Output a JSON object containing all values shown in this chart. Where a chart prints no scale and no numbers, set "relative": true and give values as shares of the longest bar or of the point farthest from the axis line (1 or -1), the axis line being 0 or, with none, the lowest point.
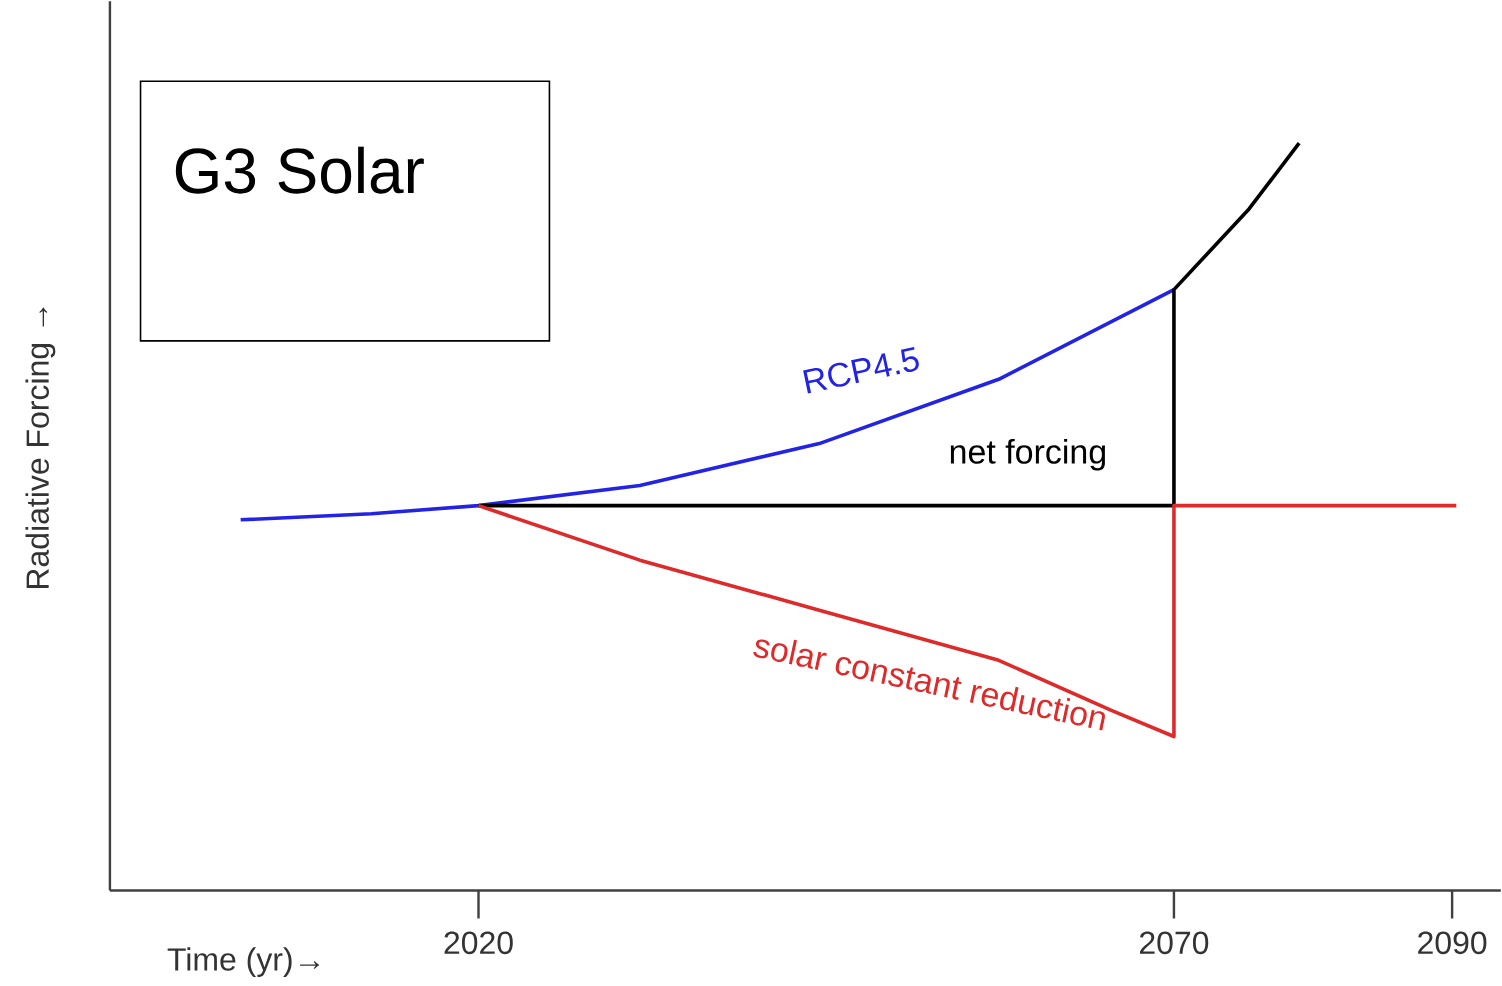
{
  "chart_data": {
    "type": "line",
    "relative": true,
    "title": "G3 Solar",
    "xlabel": "Time (yr)→",
    "ylabel": "Radiative Forcing →",
    "xlim": [
      1993.5,
      2093.5
    ],
    "xticks": [
      2020,
      2070,
      2090
    ],
    "series": [
      {
        "name": "RCP4.5",
        "color": "#2323e6",
        "x": [
          2002.9,
          2012.3,
          2020,
          2031.6,
          2044.5,
          2057.4,
          2070
        ],
        "values": [
          0.496,
          0.504,
          0.515,
          0.542,
          0.598,
          0.684,
          0.804
        ]
      },
      {
        "name": "net forcing",
        "color": "#000000",
        "x": [
          2020,
          2070,
          2070,
          2075.4,
          2079
        ],
        "values": [
          0.515,
          0.515,
          0.804,
          0.912,
          1.0
        ]
      },
      {
        "name": "solar constant reduction",
        "color": "#dd2a2a",
        "x": [
          2020,
          2031.6,
          2044.5,
          2057.4,
          2065.5,
          2070,
          2070,
          2090.3
        ],
        "values": [
          0.515,
          0.442,
          0.375,
          0.308,
          0.241,
          0.206,
          0.515,
          0.515
        ]
      }
    ]
  }
}
